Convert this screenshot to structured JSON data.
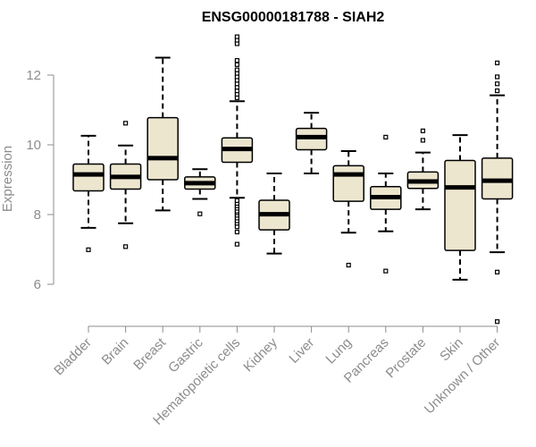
{
  "chart_data": {
    "type": "boxplot",
    "title": "ENSG00000181788 - SIAH2",
    "xlabel": "",
    "ylabel": "Expression",
    "ylim": [
      4.7,
      13.2
    ],
    "yticks": [
      6,
      8,
      10,
      12
    ],
    "colors": {
      "box_fill": "#ede6cf",
      "stroke": "#000000",
      "axis": "#8c8c8c"
    },
    "categories": [
      "Bladder",
      "Brain",
      "Breast",
      "Gastric",
      "Hematopoietic cells",
      "Kidney",
      "Liver",
      "Lung",
      "Pancreas",
      "Prostate",
      "Skin",
      "Unknown / Other"
    ],
    "boxes": [
      {
        "name": "Bladder",
        "whisker_low": 7.62,
        "q1": 8.68,
        "median": 9.15,
        "q3": 9.45,
        "whisker_high": 10.26,
        "outliers": [
          6.99
        ]
      },
      {
        "name": "Brain",
        "whisker_low": 7.75,
        "q1": 8.73,
        "median": 9.08,
        "q3": 9.45,
        "whisker_high": 9.98,
        "outliers": [
          7.08,
          10.62
        ]
      },
      {
        "name": "Breast",
        "whisker_low": 8.12,
        "q1": 9.0,
        "median": 9.62,
        "q3": 10.78,
        "whisker_high": 12.5,
        "outliers": []
      },
      {
        "name": "Gastric",
        "whisker_low": 8.45,
        "q1": 8.73,
        "median": 8.9,
        "q3": 9.08,
        "whisker_high": 9.3,
        "outliers": [
          8.02
        ]
      },
      {
        "name": "Hematopoietic cells",
        "whisker_low": 8.48,
        "q1": 9.5,
        "median": 9.88,
        "q3": 10.2,
        "whisker_high": 11.25,
        "outliers": [
          7.15,
          7.5,
          7.65,
          7.75,
          7.82,
          7.9,
          7.98,
          8.05,
          8.1,
          8.18,
          8.25,
          8.32,
          8.4,
          11.35,
          11.45,
          11.55,
          11.65,
          11.75,
          11.85,
          11.95,
          12.05,
          12.15,
          12.3,
          12.42,
          12.9,
          13.0,
          13.1
        ]
      },
      {
        "name": "Kidney",
        "whisker_low": 6.88,
        "q1": 7.56,
        "median": 8.01,
        "q3": 8.41,
        "whisker_high": 9.18,
        "outliers": []
      },
      {
        "name": "Liver",
        "whisker_low": 9.18,
        "q1": 9.86,
        "median": 10.22,
        "q3": 10.47,
        "whisker_high": 10.92,
        "outliers": []
      },
      {
        "name": "Lung",
        "whisker_low": 7.48,
        "q1": 8.38,
        "median": 9.15,
        "q3": 9.4,
        "whisker_high": 9.82,
        "outliers": [
          6.55
        ]
      },
      {
        "name": "Pancreas",
        "whisker_low": 7.52,
        "q1": 8.15,
        "median": 8.5,
        "q3": 8.8,
        "whisker_high": 9.18,
        "outliers": [
          6.38,
          10.22
        ]
      },
      {
        "name": "Prostate",
        "whisker_low": 8.15,
        "q1": 8.75,
        "median": 8.95,
        "q3": 9.22,
        "whisker_high": 9.78,
        "outliers": [
          10.13,
          10.4
        ]
      },
      {
        "name": "Skin",
        "whisker_low": 6.13,
        "q1": 6.97,
        "median": 8.78,
        "q3": 9.55,
        "whisker_high": 10.28,
        "outliers": []
      },
      {
        "name": "Unknown / Other",
        "whisker_low": 6.92,
        "q1": 8.45,
        "median": 8.97,
        "q3": 9.62,
        "whisker_high": 11.42,
        "outliers": [
          4.93,
          6.35,
          11.55,
          11.75,
          11.95,
          12.35
        ]
      }
    ]
  }
}
